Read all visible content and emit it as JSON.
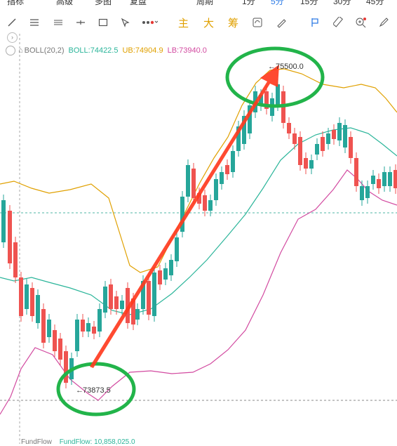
{
  "topbar": {
    "items": [
      "指标",
      "高级",
      "多图",
      "复盘",
      "周期",
      "1分",
      "5分",
      "15分",
      "30分",
      "45分"
    ]
  },
  "toolbar": {
    "tools": [
      "line-tool-icon",
      "menu-icon",
      "list-icon",
      "horizontal-line-icon",
      "rect-icon",
      "cursor-icon",
      "more-dots-icon"
    ],
    "labels": [
      "主",
      "大",
      "筹"
    ],
    "right_tools": [
      "refresh-icon",
      "pen-icon",
      "flag-icon",
      "ruler-icon",
      "zoom-icon",
      "brush-icon"
    ]
  },
  "indicator": {
    "expand": "›",
    "name": "BOLL(20,2)",
    "boll": "BOLL:74422.5",
    "ub": "UB:74904.9",
    "lb": "LB:73940.0",
    "colors": {
      "boll": "#2bb59a",
      "ub": "#e0a000",
      "lb": "#d24aa0"
    }
  },
  "annotations": {
    "high": "75500.0",
    "low": "73873.5",
    "high_marker": "←",
    "low_marker": "←"
  },
  "bottom": {
    "label": "FundFlow",
    "value": "FundFlow: 10,858,025.0"
  },
  "colors": {
    "up": "#26a69a",
    "down": "#ef5350",
    "circle": "#22b44a",
    "arrow": "#ff3b1f"
  }
}
